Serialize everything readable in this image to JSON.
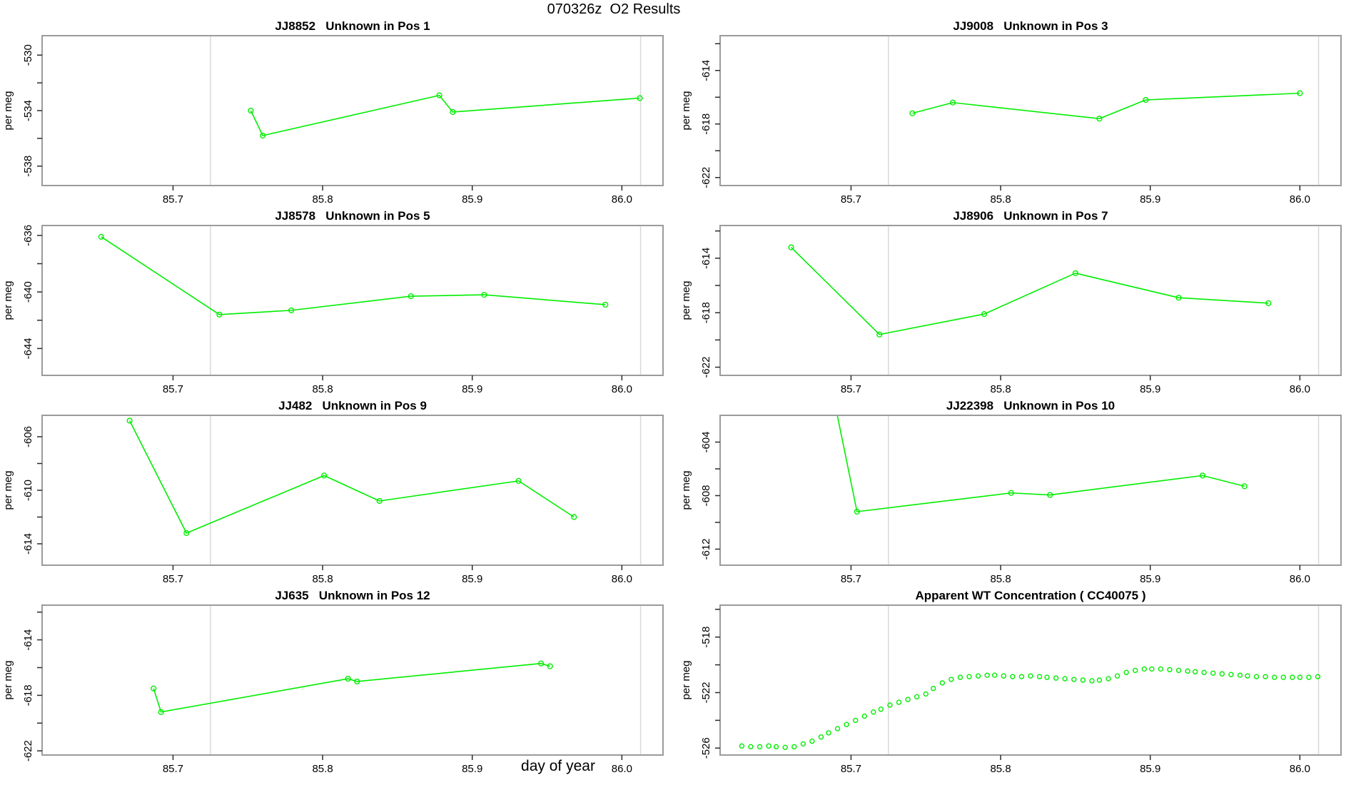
{
  "page_title": "070326z  O2 Results",
  "figure": {
    "xlabel": "day of year"
  },
  "colors": {
    "series": "#00EE00",
    "gridline": "#D8D8D8",
    "box": "#9B9B9B",
    "tick": "#2B2B2B",
    "text": "#000000",
    "background": "#FFFFFF"
  },
  "chart_data": {
    "type": "line",
    "shared": {
      "ylabel": "per meg",
      "xlabel": "day of year",
      "xlim": [
        85.6125,
        86.0275
      ],
      "xticks": [
        85.7,
        85.8,
        85.9,
        86.0
      ],
      "grid_x": [
        85.725,
        86.0125
      ],
      "grid": "vertical-reference-lines-only",
      "legend": "none"
    },
    "panels": [
      {
        "title": "JJ8852   Unknown in Pos 1",
        "ylim": [
          -539.4,
          -528.6
        ],
        "yticks": [
          -538,
          -536,
          -534,
          -532,
          -530
        ],
        "ytick_labeled": [
          -538,
          -534,
          -530
        ],
        "line": true,
        "marker_r": 3.4,
        "x": [
          85.752,
          85.76,
          85.878,
          85.887,
          86.012
        ],
        "y": [
          -534.0,
          -535.8,
          -532.9,
          -534.1,
          -533.1
        ]
      },
      {
        "title": "JJ9008   Unknown in Pos 3",
        "ylim": [
          -622.6,
          -611.4
        ],
        "yticks": [
          -622,
          -620,
          -618,
          -616,
          -614,
          -612
        ],
        "ytick_labeled": [
          -622,
          -618,
          -614
        ],
        "line": true,
        "marker_r": 3.4,
        "x": [
          85.741,
          85.768,
          85.866,
          85.897,
          86.0
        ],
        "y": [
          -617.2,
          -616.4,
          -617.6,
          -616.2,
          -615.7
        ]
      },
      {
        "title": "JJ8578   Unknown in Pos 5",
        "ylim": [
          -645.9,
          -635.3
        ],
        "yticks": [
          -644,
          -642,
          -640,
          -638,
          -636
        ],
        "ytick_labeled": [
          -644,
          -640,
          -636
        ],
        "line": true,
        "marker_r": 3.4,
        "x": [
          85.652,
          85.731,
          85.779,
          85.859,
          85.908,
          85.989
        ],
        "y": [
          -636.1,
          -641.6,
          -641.3,
          -640.3,
          -640.2,
          -640.9
        ]
      },
      {
        "title": "JJ8906   Unknown in Pos 7",
        "ylim": [
          -622.6,
          -611.6
        ],
        "yticks": [
          -622,
          -620,
          -618,
          -616,
          -614,
          -612
        ],
        "ytick_labeled": [
          -622,
          -618,
          -614
        ],
        "line": true,
        "marker_r": 3.4,
        "x": [
          85.66,
          85.719,
          85.789,
          85.85,
          85.919,
          85.979
        ],
        "y": [
          -613.2,
          -619.6,
          -618.1,
          -615.1,
          -616.9,
          -617.3
        ]
      },
      {
        "title": "JJ482   Unknown in Pos 9",
        "ylim": [
          -615.6,
          -604.4
        ],
        "yticks": [
          -614,
          -612,
          -610,
          -608,
          -606
        ],
        "ytick_labeled": [
          -614,
          -610,
          -606
        ],
        "line": true,
        "marker_r": 3.4,
        "x": [
          85.671,
          85.709,
          85.801,
          85.838,
          85.931,
          85.968
        ],
        "y": [
          -604.8,
          -613.2,
          -608.9,
          -610.8,
          -609.3,
          -612.0
        ]
      },
      {
        "title": "JJ22398   Unknown in Pos 10",
        "ylim": [
          -613.2,
          -602.0
        ],
        "yticks": [
          -612,
          -610,
          -608,
          -606,
          -604
        ],
        "ytick_labeled": [
          -612,
          -608,
          -604
        ],
        "line": true,
        "marker_r": 3.4,
        "note": "first point lies above plot box and is clipped; line enters from top edge",
        "x": [
          85.689,
          85.704,
          85.807,
          85.833,
          85.935,
          85.963
        ],
        "y": [
          -601.0,
          -609.2,
          -607.8,
          -607.95,
          -606.5,
          -607.3
        ]
      },
      {
        "title": "JJ635   Unknown in Pos 12",
        "ylim": [
          -622.3,
          -611.5
        ],
        "yticks": [
          -622,
          -620,
          -618,
          -616,
          -614,
          -612
        ],
        "ytick_labeled": [
          -622,
          -618,
          -614
        ],
        "line": true,
        "marker_r": 3.4,
        "x": [
          85.687,
          85.692,
          85.817,
          85.823,
          85.946,
          85.952
        ],
        "y": [
          -617.5,
          -619.2,
          -616.8,
          -617.0,
          -615.7,
          -615.9
        ]
      },
      {
        "title": "Apparent WT Concentration ( CC40075 )",
        "ylim": [
          -526.5,
          -515.7
        ],
        "yticks": [
          -526,
          -524,
          -522,
          -520,
          -518,
          -516
        ],
        "ytick_labeled": [
          -526,
          -522,
          -518
        ],
        "line": false,
        "marker_r": 3.0,
        "x": [
          85.627,
          85.633,
          85.639,
          85.645,
          85.65,
          85.656,
          85.662,
          85.668,
          85.674,
          85.68,
          85.685,
          85.691,
          85.697,
          85.703,
          85.709,
          85.715,
          85.72,
          85.726,
          85.732,
          85.738,
          85.744,
          85.75,
          85.755,
          85.761,
          85.767,
          85.773,
          85.779,
          85.785,
          85.791,
          85.796,
          85.802,
          85.808,
          85.814,
          85.82,
          85.826,
          85.831,
          85.837,
          85.843,
          85.849,
          85.855,
          85.861,
          85.866,
          85.872,
          85.878,
          85.884,
          85.89,
          85.896,
          85.901,
          85.907,
          85.913,
          85.919,
          85.925,
          85.93,
          85.936,
          85.942,
          85.948,
          85.954,
          85.96,
          85.965,
          85.971,
          85.977,
          85.983,
          85.989,
          85.995,
          86.0,
          86.006,
          86.012
        ],
        "y": [
          -525.85,
          -525.9,
          -525.9,
          -525.85,
          -525.9,
          -525.95,
          -525.9,
          -525.7,
          -525.5,
          -525.2,
          -524.9,
          -524.6,
          -524.3,
          -524.0,
          -523.7,
          -523.4,
          -523.2,
          -522.9,
          -522.7,
          -522.5,
          -522.3,
          -522.1,
          -521.7,
          -521.3,
          -521.05,
          -520.9,
          -520.85,
          -520.8,
          -520.75,
          -520.75,
          -520.8,
          -520.85,
          -520.85,
          -520.8,
          -520.85,
          -520.9,
          -520.95,
          -521.0,
          -521.05,
          -521.1,
          -521.15,
          -521.1,
          -521.0,
          -520.8,
          -520.55,
          -520.4,
          -520.3,
          -520.3,
          -520.3,
          -520.35,
          -520.4,
          -520.45,
          -520.5,
          -520.55,
          -520.6,
          -520.65,
          -520.7,
          -520.75,
          -520.8,
          -520.85,
          -520.85,
          -520.9,
          -520.9,
          -520.9,
          -520.9,
          -520.9,
          -520.85
        ]
      }
    ]
  }
}
